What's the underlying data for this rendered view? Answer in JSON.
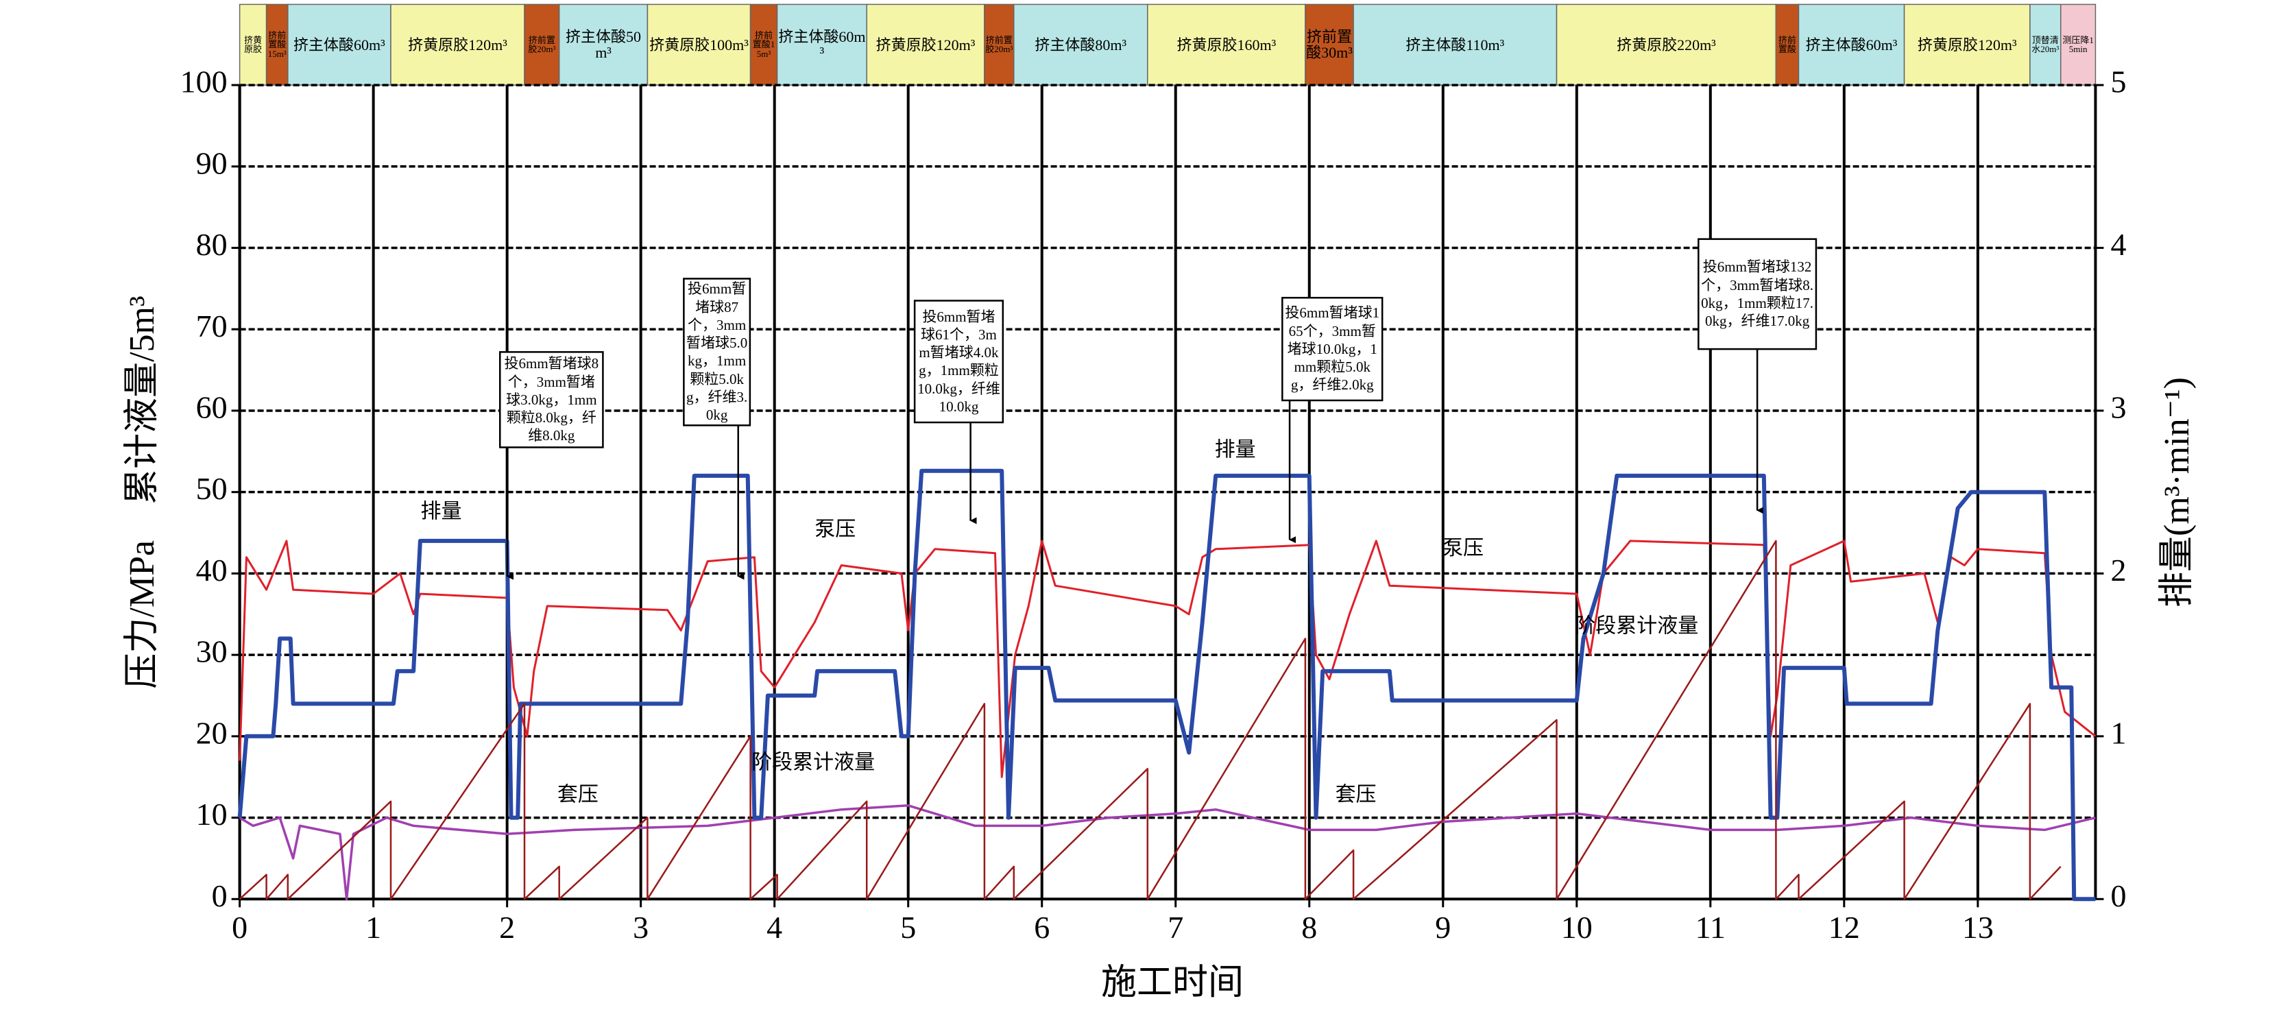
{
  "chart_data": {
    "type": "line",
    "xlabel": "施工时间",
    "ylabel": "压力/MPa　累计液量/5m³",
    "y2label": "排量(m³·min⁻¹)",
    "xlim": [
      0,
      13.88
    ],
    "xticks": [
      0,
      1,
      2,
      3,
      4,
      5,
      6,
      7,
      8,
      9,
      10,
      11,
      12,
      13
    ],
    "ylim": [
      0,
      100
    ],
    "yticks": [
      0,
      10,
      20,
      30,
      40,
      50,
      60,
      70,
      80,
      90,
      100
    ],
    "y2lim": [
      0,
      5
    ],
    "y2ticks": [
      0,
      1,
      2,
      3,
      4,
      5
    ],
    "grid": true,
    "stages": [
      {
        "label": "挤黄原胶",
        "start": 0,
        "end": 0.2,
        "color": "#f5f5a8"
      },
      {
        "label": "挤前置酸15m³",
        "start": 0.2,
        "end": 0.36,
        "color": "#c0541c"
      },
      {
        "label": "挤主体酸60m³",
        "start": 0.36,
        "end": 1.13,
        "color": "#b8e6e6"
      },
      {
        "label": "挤黄原胶120m³",
        "start": 1.13,
        "end": 2.13,
        "color": "#f5f5a8"
      },
      {
        "label": "挤前置胶20m³",
        "start": 2.13,
        "end": 2.39,
        "color": "#c0541c"
      },
      {
        "label": "挤主体酸50m³",
        "start": 2.39,
        "end": 3.05,
        "color": "#b8e6e6"
      },
      {
        "label": "挤黄原胶100m³",
        "start": 3.05,
        "end": 3.82,
        "color": "#f5f5a8"
      },
      {
        "label": "挤前置酸15m³",
        "start": 3.82,
        "end": 4.02,
        "color": "#c0541c"
      },
      {
        "label": "挤主体酸60m³",
        "start": 4.02,
        "end": 4.69,
        "color": "#b8e6e6"
      },
      {
        "label": "挤黄原胶120m³",
        "start": 4.69,
        "end": 5.57,
        "color": "#f5f5a8"
      },
      {
        "label": "挤前置胶20m³",
        "start": 5.57,
        "end": 5.79,
        "color": "#c0541c"
      },
      {
        "label": "挤主体酸80m³",
        "start": 5.79,
        "end": 6.79,
        "color": "#b8e6e6"
      },
      {
        "label": "挤黄原胶160m³",
        "start": 6.79,
        "end": 7.97,
        "color": "#f5f5a8"
      },
      {
        "label": "挤前置酸30m³",
        "start": 7.97,
        "end": 8.33,
        "color": "#c0541c"
      },
      {
        "label": "挤主体酸110m³",
        "start": 8.33,
        "end": 9.85,
        "color": "#b8e6e6"
      },
      {
        "label": "挤黄原胶220m³",
        "start": 9.85,
        "end": 11.49,
        "color": "#f5f5a8"
      },
      {
        "label": "挤前置酸",
        "start": 11.49,
        "end": 11.66,
        "color": "#c0541c"
      },
      {
        "label": "挤主体酸60m³",
        "start": 11.66,
        "end": 12.45,
        "color": "#b8e6e6"
      },
      {
        "label": "挤黄原胶120m³",
        "start": 12.45,
        "end": 13.39,
        "color": "#f5f5a8"
      },
      {
        "label": "顶替清水20m³",
        "start": 13.39,
        "end": 13.62,
        "color": "#b8e6e6"
      },
      {
        "label": "测压降15min",
        "start": 13.62,
        "end": 13.88,
        "color": "#f4c8d0"
      }
    ],
    "annotations": [
      "投6mm暂堵球8个，3mm暂堵球3.0kg，1mm颗粒8.0kg，纤维8.0kg",
      "投6mm暂堵球87个，3mm暂堵球5.0kg，1mm颗粒5.0kg，纤维3.0kg",
      "投6mm暂堵球61个，3mm暂堵球4.0kg，1mm颗粒10.0kg，纤维10.0kg",
      "投6mm暂堵球165个，3mm暂堵球10.0kg，1mm颗粒5.0kg，纤维2.0kg",
      "投6mm暂堵球132个，3mm暂堵球8.0kg，1mm颗粒17.0kg，纤维17.0kg"
    ],
    "series": [
      {
        "name": "泵压",
        "color": "#e0202a",
        "x": [
          0,
          0.05,
          0.2,
          0.35,
          0.4,
          1.0,
          1.2,
          1.3,
          1.35,
          2.0,
          2.05,
          2.15,
          2.2,
          2.3,
          3.2,
          3.3,
          3.5,
          3.85,
          3.9,
          4.0,
          4.3,
          4.5,
          4.95,
          5.0,
          5.05,
          5.2,
          5.65,
          5.7,
          5.8,
          5.9,
          6.0,
          6.1,
          7.0,
          7.1,
          7.2,
          7.3,
          8.0,
          8.05,
          8.15,
          8.3,
          8.5,
          8.6,
          10.0,
          10.1,
          10.2,
          10.4,
          11.4,
          11.45,
          11.5,
          11.6,
          12.0,
          12.05,
          12.6,
          12.7,
          12.8,
          12.9,
          13.0,
          13.5,
          13.55,
          13.65,
          13.88
        ],
        "values": [
          17,
          42,
          38,
          44,
          38,
          37.5,
          40,
          35,
          37.5,
          37,
          26,
          20,
          28,
          36,
          35.5,
          33,
          41.5,
          42,
          28,
          26,
          34,
          41,
          40,
          33,
          40,
          43,
          42.5,
          15,
          30,
          36,
          44,
          38.5,
          36,
          35,
          42,
          43,
          43.5,
          30,
          27,
          35,
          44,
          38.5,
          37.5,
          30,
          40,
          44,
          43.5,
          20,
          25,
          41,
          44,
          39,
          40,
          34,
          42,
          41,
          43,
          42.5,
          30,
          23,
          20
        ]
      },
      {
        "name": "套压",
        "color": "#a040b0",
        "x": [
          0,
          0.1,
          0.3,
          0.4,
          0.45,
          0.75,
          0.8,
          0.85,
          1.1,
          1.3,
          2.0,
          2.5,
          3.5,
          4.0,
          4.5,
          5.0,
          5.5,
          6.0,
          6.5,
          7.0,
          7.3,
          8.0,
          8.5,
          9.0,
          10.0,
          10.5,
          11.0,
          11.5,
          12.0,
          12.5,
          13.0,
          13.5,
          13.88
        ],
        "values": [
          10,
          9,
          10,
          5,
          9,
          8,
          0,
          8,
          10,
          9,
          8,
          8.5,
          9,
          10,
          11,
          11.5,
          9,
          9,
          10,
          10.5,
          11,
          8.5,
          8.5,
          9.5,
          10.5,
          9.5,
          8.5,
          8.5,
          9,
          10,
          9,
          8.5,
          10
        ]
      },
      {
        "name": "排量",
        "color": "#2a4aa8",
        "axis": "y2",
        "x": [
          0,
          0.05,
          0.05,
          0.25,
          0.27,
          0.3,
          0.38,
          0.4,
          1.15,
          1.18,
          1.3,
          1.35,
          2.0,
          2.03,
          2.08,
          2.1,
          3.3,
          3.35,
          3.4,
          3.8,
          3.85,
          3.9,
          3.95,
          4.3,
          4.32,
          4.9,
          4.95,
          5.0,
          5.05,
          5.1,
          5.7,
          5.75,
          5.8,
          6.05,
          6.1,
          7.0,
          7.1,
          7.2,
          7.3,
          8.0,
          8.05,
          8.1,
          8.6,
          8.62,
          10.0,
          10.05,
          10.2,
          10.3,
          11.4,
          11.45,
          11.5,
          11.55,
          12.0,
          12.02,
          12.65,
          12.7,
          12.85,
          12.95,
          13.5,
          13.55,
          13.7,
          13.72,
          13.88
        ],
        "values": [
          0.5,
          1.0,
          1.0,
          1.0,
          1.2,
          1.6,
          1.6,
          1.2,
          1.2,
          1.4,
          1.4,
          2.2,
          2.2,
          0.5,
          0.5,
          1.2,
          1.2,
          1.7,
          2.6,
          2.6,
          0.5,
          0.5,
          1.25,
          1.25,
          1.4,
          1.4,
          1.0,
          1.0,
          2.0,
          2.63,
          2.63,
          0.5,
          1.42,
          1.42,
          1.22,
          1.22,
          0.9,
          1.7,
          2.6,
          2.6,
          0.5,
          1.4,
          1.4,
          1.22,
          1.22,
          1.6,
          2.0,
          2.6,
          2.6,
          0.5,
          0.5,
          1.42,
          1.42,
          1.2,
          1.2,
          1.65,
          2.4,
          2.5,
          2.5,
          1.3,
          1.3,
          0,
          0
        ]
      },
      {
        "name": "阶段累计液量",
        "color": "#9a1a1a",
        "x": [
          0,
          0.2,
          0.2,
          0.36,
          0.36,
          1.13,
          1.13,
          2.13,
          2.13,
          2.39,
          2.39,
          3.05,
          3.05,
          3.82,
          3.82,
          4.02,
          4.02,
          4.69,
          4.69,
          5.57,
          5.57,
          5.79,
          5.79,
          6.79,
          6.79,
          7.97,
          7.97,
          8.33,
          8.33,
          9.85,
          9.85,
          11.49,
          11.49,
          11.66,
          11.66,
          12.45,
          12.45,
          13.39,
          13.39,
          13.62
        ],
        "values": [
          0,
          3,
          0,
          3,
          0,
          12,
          0,
          24,
          0,
          4,
          0,
          10,
          0,
          20,
          0,
          3,
          0,
          12,
          0,
          24,
          0,
          4,
          0,
          16,
          0,
          32,
          0,
          6,
          0,
          22,
          0,
          44,
          0,
          3,
          0,
          12,
          0,
          24,
          0,
          4
        ]
      }
    ]
  }
}
